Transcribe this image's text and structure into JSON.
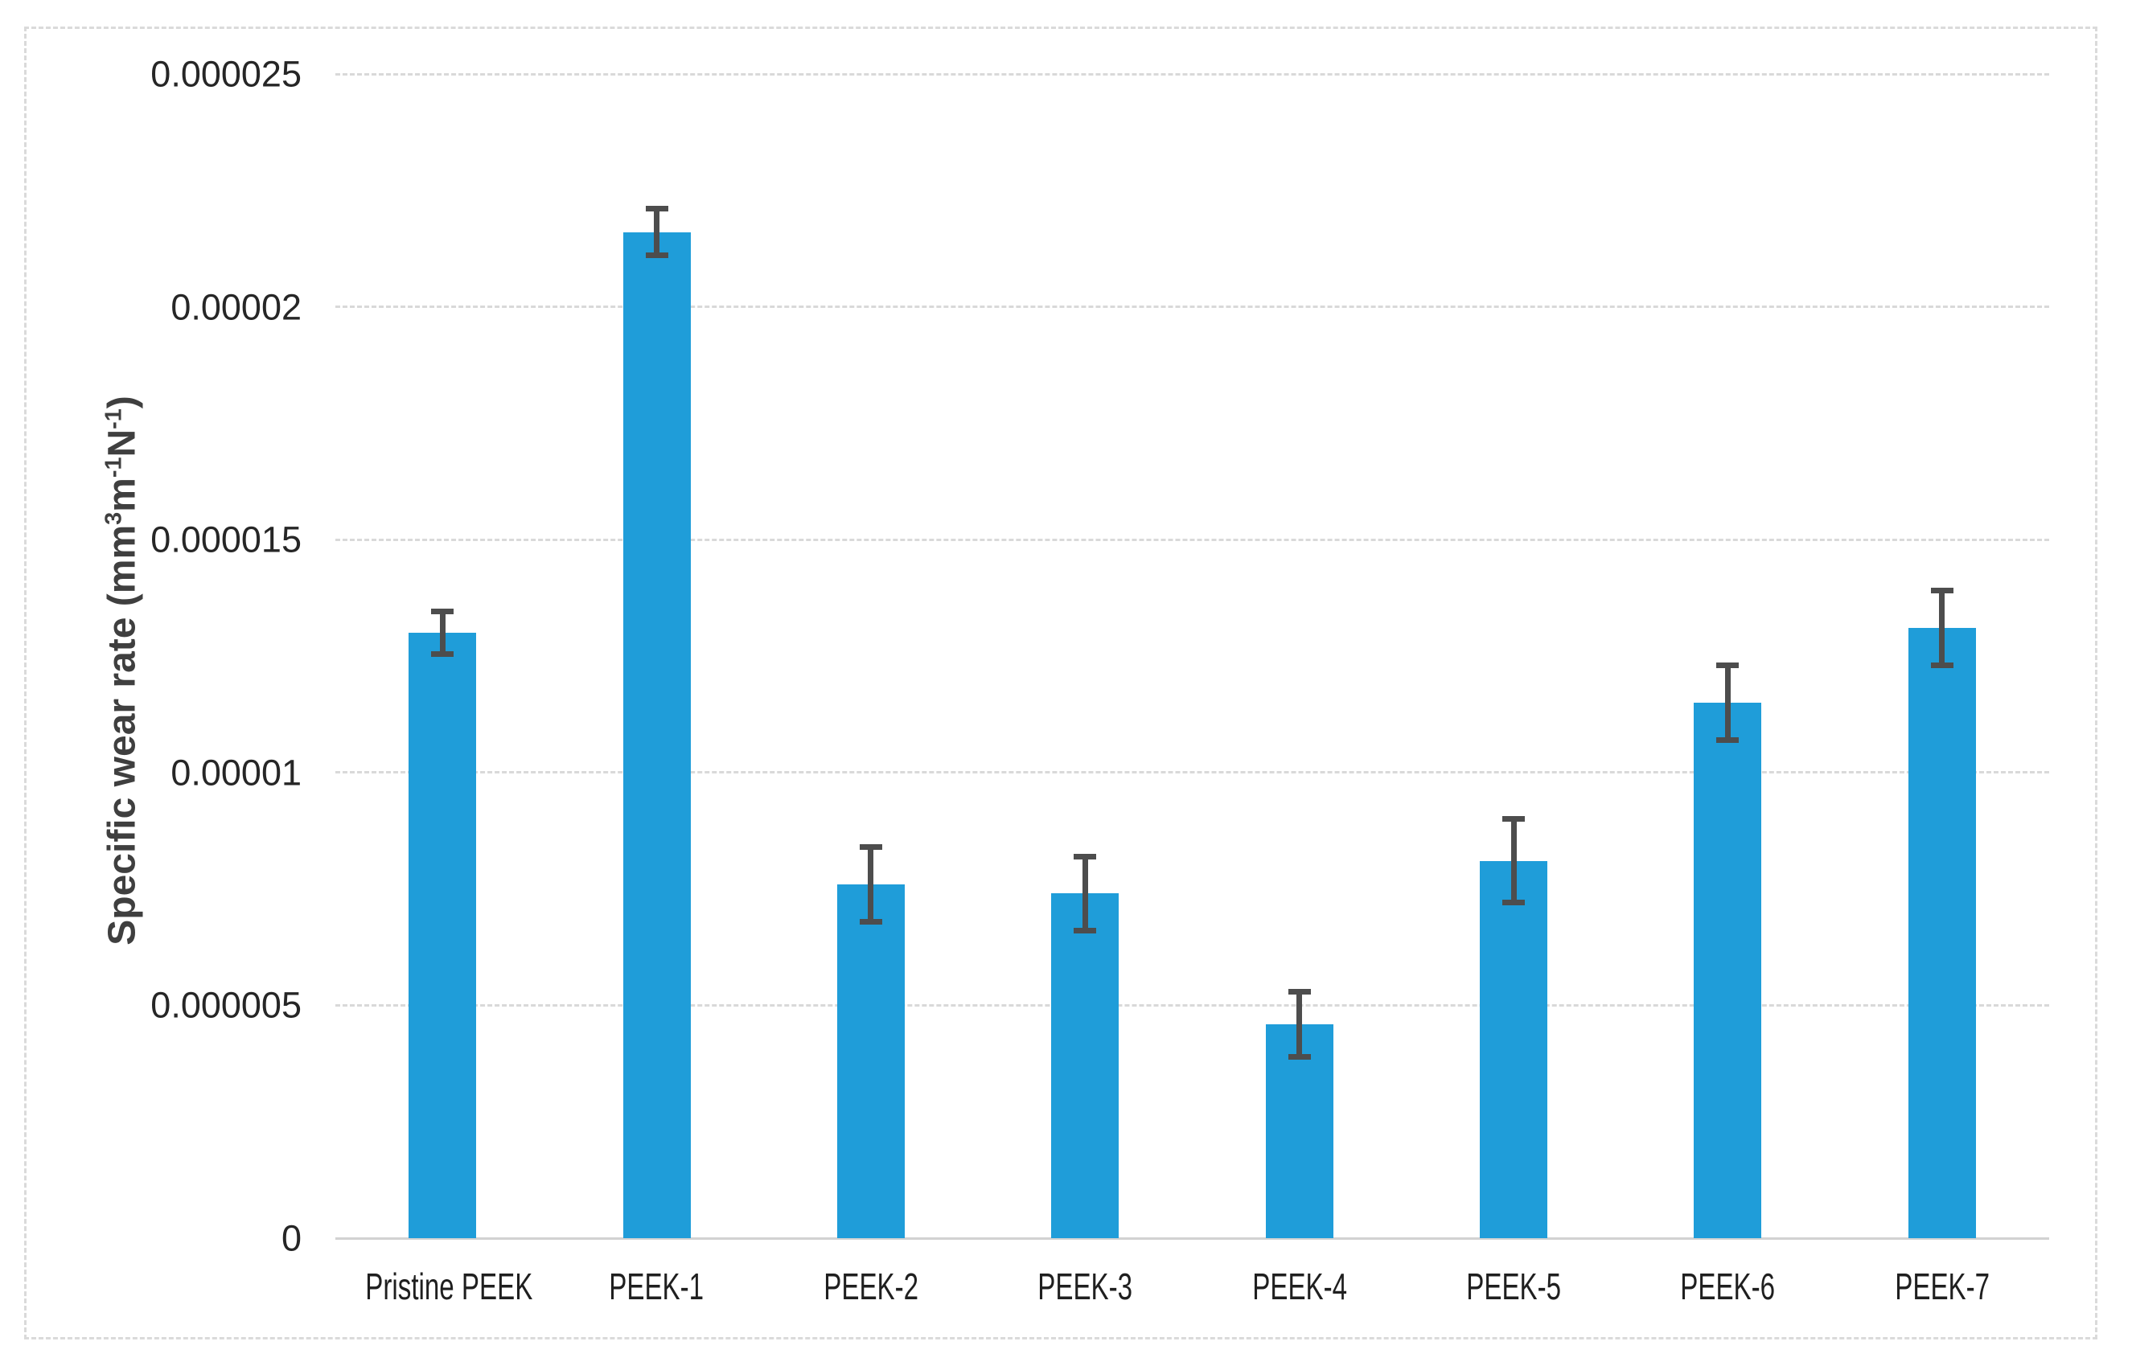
{
  "chart_data": {
    "type": "bar",
    "title": "",
    "xlabel": "",
    "ylabel": "Specific wear rate (mm3m-1N-1)",
    "ylabel_parts": [
      {
        "t": "Specific wear rate (mm",
        "sup": false
      },
      {
        "t": "3",
        "sup": true
      },
      {
        "t": "m",
        "sup": false
      },
      {
        "t": "-1",
        "sup": true
      },
      {
        "t": "N",
        "sup": false
      },
      {
        "t": "-1",
        "sup": true
      },
      {
        "t": ")",
        "sup": false
      }
    ],
    "categories": [
      "Pristine PEEK",
      "PEEK-1",
      "PEEK-2",
      "PEEK-3",
      "PEEK-4",
      "PEEK-5",
      "PEEK-6",
      "PEEK-7"
    ],
    "values": [
      1.3e-05,
      2.16e-05,
      7.6e-06,
      7.4e-06,
      4.6e-06,
      8.1e-06,
      1.15e-05,
      1.31e-05
    ],
    "error_bars": [
      4.5e-07,
      5e-07,
      8e-07,
      8e-07,
      7e-07,
      9e-07,
      8e-07,
      8e-07
    ],
    "y_ticks": [
      "0",
      "0.000005",
      "0.00001",
      "0.000015",
      "0.00002",
      "0.000025"
    ],
    "ylim": [
      0,
      2.5e-05
    ],
    "grid": "horizontal-dashed",
    "legend": "none",
    "colors": {
      "bar": "#1F9DD9",
      "error_bar": "#4D4D4D",
      "gridline": "#D9D9D9",
      "axis_line": "#D2D2D2",
      "tick_text": "#262626",
      "axis_title": "#3F3F3F",
      "outer_border": "#DADADA"
    }
  }
}
